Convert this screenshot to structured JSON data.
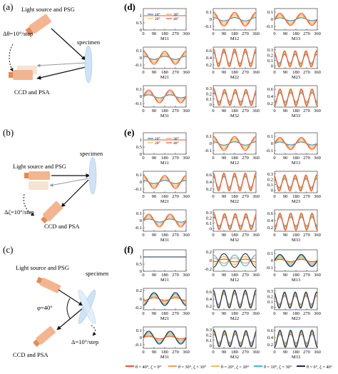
{
  "panel_labels": {
    "a": "(a)",
    "b": "(b)",
    "c": "(c)",
    "d": "(d)",
    "e": "(e)",
    "f": "(f)"
  },
  "schematic": {
    "a": {
      "source": "Light source and PSG",
      "specimen": "specimen",
      "detector": "CCD and PSA",
      "step": "Δθ=10°/step"
    },
    "b": {
      "source": "Light source and PSG",
      "specimen": "specimen",
      "detector": "CCD and PSA",
      "step": "Δζ=10°/step"
    },
    "c": {
      "source": "Light source and PSG",
      "specimen": "specimen",
      "detector": "CCD and PSA",
      "angle": "φ=40°",
      "step": "Δ=10°/step"
    }
  },
  "colors": {
    "red": "#e8542c",
    "blue": "#2f7fc3",
    "yellow": "#f0c24d",
    "purple": "#a05aa0",
    "green": "#4aa84a",
    "orange": "#f29c52",
    "light_blue": "#41b3e6",
    "navy": "#1a2a4c",
    "source_body": "#f3b58f",
    "source_cap": "#e58a55",
    "lens": "#cfe3f6"
  },
  "legend_d": [
    "10°",
    "20°",
    "30°",
    "40°"
  ],
  "legend_bottom": [
    "θ = 40°, ζ = 0°",
    "θ = 30°, ζ = 10°",
    "θ = 20°, ζ = 20°",
    "θ = 10°, ζ = 30°",
    "θ = 0°, ζ = 40°"
  ],
  "chart_data": [
    {
      "type": "line",
      "panel": "d",
      "xlim": [
        0,
        360
      ],
      "xticks": [
        0,
        90,
        180,
        270,
        360
      ],
      "series": [
        "10°",
        "20°",
        "30°",
        "40°"
      ],
      "subplots": [
        {
          "label": "M11",
          "yticks": [
            "1",
            "0.5",
            "0"
          ],
          "ylim": [
            0,
            1.5
          ]
        },
        {
          "label": "M12",
          "yticks": [
            "0.1",
            "0",
            "-0.1"
          ],
          "ylim": [
            -0.15,
            0.15
          ]
        },
        {
          "label": "M13",
          "yticks": [
            "0.1",
            "0",
            "-0.1"
          ],
          "ylim": [
            -0.15,
            0.15
          ]
        },
        {
          "label": "M21",
          "yticks": [
            "0.1",
            "0",
            "-0.1"
          ],
          "ylim": [
            -0.15,
            0.15
          ]
        },
        {
          "label": "M22",
          "yticks": [
            "0.6",
            "0.4",
            "0.2"
          ],
          "ylim": [
            0.1,
            0.7
          ]
        },
        {
          "label": "M23",
          "yticks": [
            "0.3",
            "0.2",
            "0.1",
            "0"
          ],
          "ylim": [
            -0.05,
            0.35
          ]
        },
        {
          "label": "M31",
          "yticks": [
            "0.1",
            "0",
            "-0.1"
          ],
          "ylim": [
            -0.15,
            0.15
          ]
        },
        {
          "label": "M32",
          "yticks": [
            "0.3",
            "0.2",
            "0.1",
            "0"
          ],
          "ylim": [
            -0.05,
            0.35
          ]
        },
        {
          "label": "M33",
          "yticks": [
            "0.6",
            "0.4",
            "0.2"
          ],
          "ylim": [
            0.1,
            0.7
          ]
        }
      ]
    },
    {
      "type": "line",
      "panel": "e",
      "xlim": [
        0,
        360
      ],
      "xticks": [
        0,
        90,
        180,
        270,
        360
      ],
      "series": [
        "10°",
        "20°",
        "30°",
        "40°"
      ],
      "subplots": [
        {
          "label": "M11",
          "yticks": [
            "1",
            "0.5",
            "0"
          ],
          "ylim": [
            0,
            1.5
          ]
        },
        {
          "label": "M12",
          "yticks": [
            "0.1",
            "0",
            "-0.1"
          ],
          "ylim": [
            -0.15,
            0.15
          ]
        },
        {
          "label": "M13",
          "yticks": [
            "0.1",
            "0",
            "-0.1"
          ],
          "ylim": [
            -0.15,
            0.15
          ]
        },
        {
          "label": "M21",
          "yticks": [
            "0.1",
            "0",
            "-0.1"
          ],
          "ylim": [
            -0.15,
            0.15
          ]
        },
        {
          "label": "M22",
          "yticks": [
            "0.6",
            "0.4",
            "0.2"
          ],
          "ylim": [
            0.1,
            0.7
          ]
        },
        {
          "label": "M23",
          "yticks": [
            "0.3",
            "0.2",
            "0.1",
            "0"
          ],
          "ylim": [
            -0.05,
            0.35
          ]
        },
        {
          "label": "M31",
          "yticks": [
            "0.1",
            "0",
            "-0.1"
          ],
          "ylim": [
            -0.15,
            0.15
          ]
        },
        {
          "label": "M32",
          "yticks": [
            "0.3",
            "0.2",
            "0.1",
            "0"
          ],
          "ylim": [
            -0.05,
            0.35
          ]
        },
        {
          "label": "M33",
          "yticks": [
            "0.6",
            "0.4",
            "0.2"
          ],
          "ylim": [
            0.1,
            0.7
          ]
        }
      ]
    },
    {
      "type": "line",
      "panel": "f",
      "xlim": [
        0,
        360
      ],
      "xticks": [
        0,
        90,
        180,
        270,
        360
      ],
      "series": [
        "θ = 40°, ζ = 0°",
        "θ = 30°, ζ = 10°",
        "θ = 20°, ζ = 20°",
        "θ = 10°, ζ = 30°",
        "θ = 0°, ζ = 40°"
      ],
      "subplots": [
        {
          "label": "M11",
          "yticks": [
            "1",
            "0.5",
            "0"
          ],
          "ylim": [
            0,
            1.5
          ]
        },
        {
          "label": "M12",
          "yticks": [
            "0.2",
            "0",
            "-0.2"
          ],
          "ylim": [
            -0.25,
            0.25
          ]
        },
        {
          "label": "M13",
          "yticks": [
            "0.1",
            "0",
            "-0.1"
          ],
          "ylim": [
            -0.15,
            0.15
          ]
        },
        {
          "label": "M21",
          "yticks": [
            "0.2",
            "0",
            "-0.2"
          ],
          "ylim": [
            -0.25,
            0.25
          ]
        },
        {
          "label": "M22",
          "yticks": [
            "0.6",
            "0.4",
            "0.2"
          ],
          "ylim": [
            0.1,
            0.7
          ]
        },
        {
          "label": "M23",
          "yticks": [
            "0.3",
            "0.2",
            "0.1",
            "0"
          ],
          "ylim": [
            -0.05,
            0.35
          ]
        },
        {
          "label": "M31",
          "yticks": [
            "0.1",
            "0",
            "-0.1"
          ],
          "ylim": [
            -0.15,
            0.15
          ]
        },
        {
          "label": "M32",
          "yticks": [
            "0.3",
            "0.2",
            "0.1",
            "0"
          ],
          "ylim": [
            -0.05,
            0.35
          ]
        },
        {
          "label": "M33",
          "yticks": [
            "0.6",
            "0.4",
            "0.2"
          ],
          "ylim": [
            0.1,
            0.7
          ]
        }
      ]
    }
  ]
}
